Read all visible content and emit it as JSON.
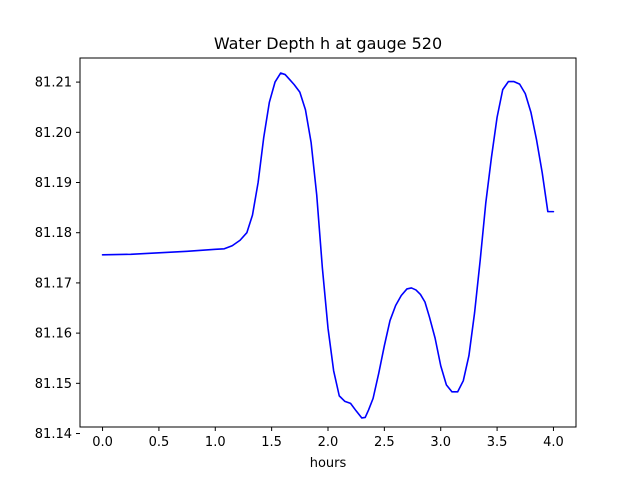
{
  "chart_data": {
    "type": "line",
    "title": "Water Depth h at gauge 520",
    "xlabel": "hours",
    "ylabel": "",
    "xlim": [
      -0.2,
      4.2
    ],
    "ylim": [
      81.1413,
      81.2148
    ],
    "xticks": [
      {
        "value": 0.0,
        "label": "0.0"
      },
      {
        "value": 0.5,
        "label": "0.5"
      },
      {
        "value": 1.0,
        "label": "1.0"
      },
      {
        "value": 1.5,
        "label": "1.5"
      },
      {
        "value": 2.0,
        "label": "2.0"
      },
      {
        "value": 2.5,
        "label": "2.5"
      },
      {
        "value": 3.0,
        "label": "3.0"
      },
      {
        "value": 3.5,
        "label": "3.5"
      },
      {
        "value": 4.0,
        "label": "4.0"
      }
    ],
    "yticks": [
      {
        "value": 81.14,
        "label": "81.14"
      },
      {
        "value": 81.15,
        "label": "81.15"
      },
      {
        "value": 81.16,
        "label": "81.16"
      },
      {
        "value": 81.17,
        "label": "81.17"
      },
      {
        "value": 81.18,
        "label": "81.18"
      },
      {
        "value": 81.19,
        "label": "81.19"
      },
      {
        "value": 81.2,
        "label": "81.20"
      },
      {
        "value": 81.21,
        "label": "81.21"
      }
    ],
    "grid": false,
    "series": [
      {
        "color": "#0000ff",
        "x": [
          0.0,
          0.25,
          0.5,
          0.75,
          1.0,
          1.08,
          1.15,
          1.22,
          1.28,
          1.33,
          1.38,
          1.43,
          1.48,
          1.53,
          1.58,
          1.62,
          1.66,
          1.7,
          1.75,
          1.8,
          1.85,
          1.9,
          1.95,
          2.0,
          2.05,
          2.1,
          2.15,
          2.2,
          2.25,
          2.3,
          2.33,
          2.36,
          2.4,
          2.45,
          2.5,
          2.55,
          2.6,
          2.65,
          2.7,
          2.74,
          2.78,
          2.82,
          2.86,
          2.9,
          2.95,
          3.0,
          3.05,
          3.1,
          3.15,
          3.2,
          3.25,
          3.3,
          3.35,
          3.4,
          3.45,
          3.5,
          3.55,
          3.6,
          3.65,
          3.7,
          3.75,
          3.8,
          3.85,
          3.9,
          3.95,
          4.0
        ],
        "values": [
          81.1756,
          81.1757,
          81.176,
          81.1763,
          81.1767,
          81.1768,
          81.1774,
          81.1785,
          81.18,
          81.1835,
          81.19,
          81.199,
          81.206,
          81.21,
          81.2118,
          81.2115,
          81.2105,
          81.2095,
          81.208,
          81.2045,
          81.198,
          81.1875,
          81.173,
          81.161,
          81.1525,
          81.1475,
          81.1464,
          81.146,
          81.1445,
          81.1431,
          81.1432,
          81.1447,
          81.147,
          81.152,
          81.1575,
          81.1625,
          81.1655,
          81.1675,
          81.1688,
          81.169,
          81.1686,
          81.1677,
          81.1662,
          81.1632,
          81.159,
          81.1535,
          81.1497,
          81.1483,
          81.1483,
          81.1505,
          81.1555,
          81.164,
          81.1745,
          81.186,
          81.195,
          81.203,
          81.2085,
          81.2101,
          81.2101,
          81.2096,
          81.2077,
          81.204,
          81.1985,
          81.192,
          81.1842,
          81.1842
        ]
      }
    ]
  }
}
